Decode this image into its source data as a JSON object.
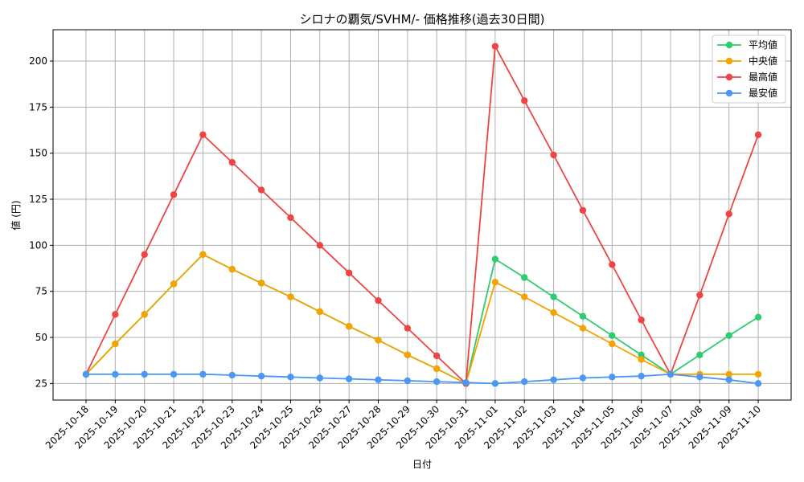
{
  "chart_data": {
    "type": "line",
    "title": "シロナの覇気/SVHM/- 価格推移(過去30日間)",
    "xlabel": "日付",
    "ylabel": "値 (円)",
    "ylim": [
      16,
      217
    ],
    "yticks": [
      25,
      50,
      75,
      100,
      125,
      150,
      175,
      200
    ],
    "grid": true,
    "legend_position": "top-right",
    "categories": [
      "2025-10-18",
      "2025-10-19",
      "2025-10-20",
      "2025-10-21",
      "2025-10-22",
      "2025-10-23",
      "2025-10-24",
      "2025-10-25",
      "2025-10-26",
      "2025-10-27",
      "2025-10-28",
      "2025-10-29",
      "2025-10-30",
      "2025-10-31",
      "2025-11-01",
      "2025-11-02",
      "2025-11-03",
      "2025-11-04",
      "2025-11-05",
      "2025-11-06",
      "2025-11-07",
      "2025-11-08",
      "2025-11-09",
      "2025-11-10"
    ],
    "series": [
      {
        "name": "平均値",
        "color": "#2ecc71",
        "values": [
          30,
          46.5,
          62.5,
          79,
          95,
          87,
          79.5,
          72,
          64,
          56,
          48.5,
          40.5,
          33,
          25,
          92.5,
          82.5,
          72,
          61.5,
          51,
          40.5,
          30,
          40.5,
          51,
          61
        ]
      },
      {
        "name": "中央値",
        "color": "#f4a300",
        "values": [
          30,
          46.5,
          62.5,
          79,
          95,
          87,
          79.5,
          72,
          64,
          56,
          48.5,
          40.5,
          33,
          25,
          80,
          72,
          63.5,
          55,
          46.5,
          38,
          30,
          30,
          30,
          30
        ]
      },
      {
        "name": "最高値",
        "color": "#ef4444",
        "values": [
          30,
          62.5,
          95,
          127.5,
          160,
          145,
          130,
          115,
          100,
          85,
          70,
          55,
          40,
          25,
          208,
          178.5,
          149,
          119,
          89.5,
          59.5,
          30,
          73,
          117,
          160
        ]
      },
      {
        "name": "最安値",
        "color": "#4a97f5",
        "values": [
          30,
          30,
          30,
          30,
          30,
          29.5,
          29,
          28.5,
          28,
          27.5,
          27,
          26.5,
          26,
          25.5,
          25,
          26,
          27,
          28,
          28.5,
          29,
          30,
          28.5,
          27,
          25
        ]
      }
    ]
  }
}
